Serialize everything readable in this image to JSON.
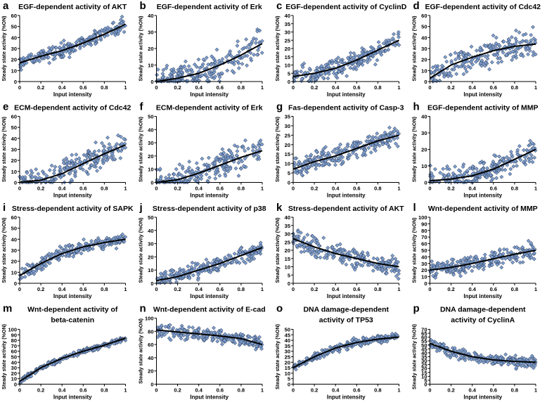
{
  "figure": {
    "xlabel": "Input intensity",
    "ylabel": "Steady state activity (%ON)",
    "marker_fill": "#7f9fcf",
    "marker_stroke": "#1c2a44",
    "curve_color": "#000000",
    "xticks": [
      "0",
      "0.2",
      "0.4",
      "0.6",
      "0.8",
      "1"
    ]
  },
  "chart_data": [
    {
      "type": "scatter",
      "letter": "a",
      "title": [
        "EGF-dependent activity of AKT"
      ],
      "ylim": [
        0,
        60
      ],
      "yticks": [
        0,
        10,
        20,
        30,
        40,
        50,
        60
      ],
      "fit": [
        [
          0,
          17
        ],
        [
          0.2,
          23
        ],
        [
          0.4,
          28
        ],
        [
          0.6,
          35
        ],
        [
          0.8,
          43
        ],
        [
          1,
          52
        ]
      ],
      "spread": 5,
      "pin_zero": false
    },
    {
      "type": "scatter",
      "letter": "b",
      "title": [
        "EGF-dependent activity of Erk"
      ],
      "ylim": [
        0,
        40
      ],
      "yticks": [
        0,
        10,
        20,
        30,
        40
      ],
      "fit": [
        [
          0,
          0
        ],
        [
          0.2,
          2
        ],
        [
          0.4,
          5
        ],
        [
          0.6,
          10
        ],
        [
          0.8,
          16
        ],
        [
          1,
          23
        ]
      ],
      "spread": 6,
      "pin_zero": true
    },
    {
      "type": "scatter",
      "letter": "c",
      "title": [
        "EGF-dependent activity of CyclinD"
      ],
      "ylim": [
        0,
        40
      ],
      "yticks": [
        0,
        5,
        10,
        15,
        20,
        25,
        30,
        35,
        40
      ],
      "fit": [
        [
          0,
          3
        ],
        [
          0.2,
          5
        ],
        [
          0.4,
          8
        ],
        [
          0.6,
          13
        ],
        [
          0.8,
          19
        ],
        [
          1,
          25
        ]
      ],
      "spread": 4,
      "pin_zero": false
    },
    {
      "type": "scatter",
      "letter": "d",
      "title": [
        "EGF-dependent activity of Cdc42"
      ],
      "ylim": [
        0,
        60
      ],
      "yticks": [
        0,
        10,
        20,
        30,
        40,
        50,
        60
      ],
      "fit": [
        [
          0,
          3
        ],
        [
          0.2,
          15
        ],
        [
          0.4,
          22
        ],
        [
          0.6,
          28
        ],
        [
          0.8,
          32
        ],
        [
          1,
          34
        ]
      ],
      "spread": 8,
      "pin_zero": false
    },
    {
      "type": "scatter",
      "letter": "e",
      "title": [
        "ECM-dependent activity of Cdc42"
      ],
      "ylim": [
        0,
        60
      ],
      "yticks": [
        0,
        10,
        20,
        30,
        40,
        50,
        60
      ],
      "fit": [
        [
          0,
          0
        ],
        [
          0.2,
          2
        ],
        [
          0.4,
          8
        ],
        [
          0.6,
          17
        ],
        [
          0.8,
          26
        ],
        [
          1,
          34
        ]
      ],
      "spread": 8,
      "pin_zero": true
    },
    {
      "type": "scatter",
      "letter": "f",
      "title": [
        "ECM-dependent activity of Erk"
      ],
      "ylim": [
        0,
        50
      ],
      "yticks": [
        0,
        10,
        20,
        30,
        40,
        50
      ],
      "fit": [
        [
          0,
          0
        ],
        [
          0.2,
          2
        ],
        [
          0.4,
          7
        ],
        [
          0.6,
          13
        ],
        [
          0.8,
          19
        ],
        [
          1,
          24
        ]
      ],
      "spread": 7,
      "pin_zero": true
    },
    {
      "type": "scatter",
      "letter": "g",
      "title": [
        "Fas-dependent activity of Casp-3"
      ],
      "ylim": [
        0,
        35
      ],
      "yticks": [
        0,
        5,
        10,
        15,
        20,
        25,
        30,
        35
      ],
      "fit": [
        [
          0,
          7
        ],
        [
          0.2,
          11
        ],
        [
          0.4,
          14
        ],
        [
          0.6,
          18
        ],
        [
          0.8,
          22
        ],
        [
          1,
          25
        ]
      ],
      "spread": 3.5,
      "pin_zero": false
    },
    {
      "type": "scatter",
      "letter": "h",
      "title": [
        "EGF-dependent activity of MMP"
      ],
      "ylim": [
        0,
        40
      ],
      "yticks": [
        0,
        10,
        20,
        30,
        40
      ],
      "fit": [
        [
          0,
          1
        ],
        [
          0.2,
          2
        ],
        [
          0.4,
          4
        ],
        [
          0.6,
          8
        ],
        [
          0.8,
          14
        ],
        [
          1,
          20
        ]
      ],
      "spread": 5,
      "pin_zero": true
    },
    {
      "type": "scatter",
      "letter": "i",
      "title": [
        "Stress-dependent activity of SAPK"
      ],
      "ylim": [
        0,
        60
      ],
      "yticks": [
        0,
        10,
        20,
        30,
        40,
        50,
        60
      ],
      "fit": [
        [
          0,
          7
        ],
        [
          0.2,
          18
        ],
        [
          0.4,
          27
        ],
        [
          0.6,
          33
        ],
        [
          0.8,
          37
        ],
        [
          1,
          40
        ]
      ],
      "spread": 4,
      "pin_zero": false
    },
    {
      "type": "scatter",
      "letter": "j",
      "title": [
        "Stress-dependent activity of p38"
      ],
      "ylim": [
        0,
        50
      ],
      "yticks": [
        0,
        10,
        20,
        30,
        40,
        50
      ],
      "fit": [
        [
          0,
          2
        ],
        [
          0.2,
          5
        ],
        [
          0.4,
          10
        ],
        [
          0.6,
          15
        ],
        [
          0.8,
          21
        ],
        [
          1,
          27
        ]
      ],
      "spread": 4,
      "pin_zero": false
    },
    {
      "type": "scatter",
      "letter": "k",
      "title": [
        "Stress-dependent activity of AKT"
      ],
      "ylim": [
        0,
        40
      ],
      "yticks": [
        0,
        5,
        10,
        15,
        20,
        25,
        30,
        35,
        40
      ],
      "fit": [
        [
          0,
          27
        ],
        [
          0.2,
          22
        ],
        [
          0.4,
          18
        ],
        [
          0.6,
          15
        ],
        [
          0.8,
          12
        ],
        [
          1,
          10
        ]
      ],
      "spread": 4,
      "pin_zero": false
    },
    {
      "type": "scatter",
      "letter": "l",
      "title": [
        "Wnt-dependent activity of MMP"
      ],
      "ylim": [
        0,
        100
      ],
      "yticks": [
        0,
        10,
        20,
        30,
        40,
        50,
        60,
        70,
        80,
        90,
        100
      ],
      "fit": [
        [
          0,
          20
        ],
        [
          0.2,
          24
        ],
        [
          0.4,
          30
        ],
        [
          0.6,
          37
        ],
        [
          0.8,
          44
        ],
        [
          1,
          50
        ]
      ],
      "spread": 9,
      "pin_zero": false
    },
    {
      "type": "scatter",
      "letter": "m",
      "title": [
        "Wnt-dependent activity of",
        "beta-catenin"
      ],
      "ylim": [
        0,
        100
      ],
      "yticks": [
        0,
        10,
        20,
        30,
        40,
        50,
        60,
        70,
        80,
        90,
        100
      ],
      "fit": [
        [
          0,
          5
        ],
        [
          0.2,
          30
        ],
        [
          0.4,
          47
        ],
        [
          0.6,
          60
        ],
        [
          0.8,
          71
        ],
        [
          1,
          84
        ]
      ],
      "spread": 3,
      "pin_zero": false
    },
    {
      "type": "scatter",
      "letter": "n",
      "title": [
        "Wnt-dependent activity of E-cad"
      ],
      "ylim": [
        0,
        100
      ],
      "yticks": [
        0,
        20,
        40,
        60,
        80,
        100
      ],
      "fit": [
        [
          0,
          82
        ],
        [
          0.2,
          79
        ],
        [
          0.4,
          76
        ],
        [
          0.6,
          73
        ],
        [
          0.8,
          69
        ],
        [
          1,
          60
        ]
      ],
      "spread": 7,
      "pin_zero": false
    },
    {
      "type": "scatter",
      "letter": "o",
      "title": [
        "DNA damage-dependent",
        "activity of TP53"
      ],
      "ylim": [
        0,
        50
      ],
      "yticks": [
        0,
        5,
        10,
        15,
        20,
        25,
        30,
        35,
        40,
        45,
        50
      ],
      "fit": [
        [
          0,
          15
        ],
        [
          0.2,
          25
        ],
        [
          0.4,
          33
        ],
        [
          0.6,
          38
        ],
        [
          0.8,
          41
        ],
        [
          1,
          43
        ]
      ],
      "spread": 2.5,
      "pin_zero": false
    },
    {
      "type": "scatter",
      "letter": "p",
      "title": [
        "DNA damage-dependent",
        "activity of CyclinA"
      ],
      "ylim": [
        0,
        70
      ],
      "yticks": [
        0,
        5,
        10,
        15,
        20,
        25,
        30,
        35,
        40,
        45,
        50,
        55,
        60,
        65,
        70
      ],
      "fit": [
        [
          0,
          52
        ],
        [
          0.2,
          42
        ],
        [
          0.4,
          35
        ],
        [
          0.6,
          31
        ],
        [
          0.8,
          29
        ],
        [
          1,
          28
        ]
      ],
      "spread": 5,
      "pin_zero": false
    }
  ]
}
